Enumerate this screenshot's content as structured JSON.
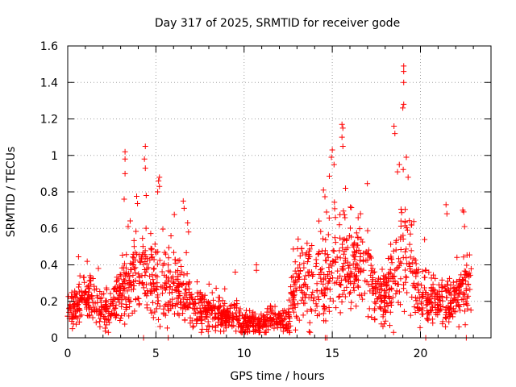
{
  "chart_data": {
    "type": "scatter",
    "title": "Day 317 of 2025, SRMTID for receiver gode",
    "xlabel": "GPS time / hours",
    "ylabel": "SRMTID / TECUs",
    "xlim": [
      0,
      24
    ],
    "ylim": [
      0,
      1.6
    ],
    "x_ticks": [
      "0",
      "5",
      "10",
      "15",
      "20"
    ],
    "x_tick_values": [
      0,
      5,
      10,
      15,
      20
    ],
    "y_ticks": [
      "0",
      "0.2",
      "0.4",
      "0.6",
      "0.8",
      "1",
      "1.2",
      "1.4",
      "1.6"
    ],
    "y_tick_values": [
      0,
      0.2,
      0.4,
      0.6,
      0.8,
      1.0,
      1.2,
      1.4,
      1.6
    ],
    "grid": true,
    "marker": "+",
    "color": "#ff0000",
    "profile_hours": [
      0,
      0.5,
      1,
      1.5,
      2,
      2.5,
      3,
      3.5,
      4,
      4.5,
      5,
      5.5,
      6,
      6.5,
      7,
      7.5,
      8,
      8.5,
      9,
      9.5,
      10,
      10.5,
      11,
      11.5,
      12,
      12.5,
      13,
      13.5,
      14,
      14.5,
      15,
      15.5,
      16,
      16.5,
      17,
      17.5,
      18,
      18.5,
      19,
      19.5,
      20,
      20.5,
      21,
      21.5,
      22,
      22.5,
      23
    ],
    "profile_typical_srmtid": [
      0.15,
      0.17,
      0.22,
      0.2,
      0.15,
      0.14,
      0.25,
      0.3,
      0.38,
      0.35,
      0.3,
      0.25,
      0.3,
      0.22,
      0.2,
      0.16,
      0.14,
      0.13,
      0.12,
      0.12,
      0.09,
      0.09,
      0.08,
      0.1,
      0.1,
      0.1,
      0.3,
      0.35,
      0.3,
      0.3,
      0.4,
      0.45,
      0.4,
      0.42,
      0.35,
      0.25,
      0.2,
      0.35,
      0.45,
      0.38,
      0.25,
      0.2,
      0.2,
      0.2,
      0.2,
      0.25,
      0.3
    ],
    "profile_spread": [
      0.06,
      0.07,
      0.08,
      0.08,
      0.06,
      0.07,
      0.12,
      0.14,
      0.16,
      0.15,
      0.14,
      0.12,
      0.12,
      0.1,
      0.09,
      0.07,
      0.06,
      0.05,
      0.05,
      0.05,
      0.04,
      0.04,
      0.04,
      0.04,
      0.04,
      0.05,
      0.15,
      0.15,
      0.14,
      0.15,
      0.18,
      0.18,
      0.16,
      0.16,
      0.14,
      0.1,
      0.1,
      0.18,
      0.2,
      0.16,
      0.1,
      0.08,
      0.08,
      0.08,
      0.08,
      0.1,
      0.1
    ],
    "peaks": [
      {
        "x": 3.25,
        "y": 1.02
      },
      {
        "x": 3.25,
        "y": 0.98
      },
      {
        "x": 3.25,
        "y": 0.9
      },
      {
        "x": 3.2,
        "y": 0.76
      },
      {
        "x": 4.4,
        "y": 1.05
      },
      {
        "x": 4.35,
        "y": 0.98
      },
      {
        "x": 4.4,
        "y": 0.93
      },
      {
        "x": 4.45,
        "y": 0.78
      },
      {
        "x": 5.2,
        "y": 0.88
      },
      {
        "x": 5.15,
        "y": 0.86
      },
      {
        "x": 5.2,
        "y": 0.83
      },
      {
        "x": 5.1,
        "y": 0.8
      },
      {
        "x": 6.55,
        "y": 0.75
      },
      {
        "x": 6.6,
        "y": 0.71
      },
      {
        "x": 6.8,
        "y": 0.63
      },
      {
        "x": 6.85,
        "y": 0.58
      },
      {
        "x": 9.5,
        "y": 0.36
      },
      {
        "x": 10.7,
        "y": 0.4
      },
      {
        "x": 10.7,
        "y": 0.37
      },
      {
        "x": 14.5,
        "y": 0.81
      },
      {
        "x": 14.95,
        "y": 0.99
      },
      {
        "x": 15.0,
        "y": 1.03
      },
      {
        "x": 15.1,
        "y": 0.95
      },
      {
        "x": 15.55,
        "y": 1.17
      },
      {
        "x": 15.6,
        "y": 1.15
      },
      {
        "x": 15.55,
        "y": 1.1
      },
      {
        "x": 15.6,
        "y": 1.05
      },
      {
        "x": 15.75,
        "y": 0.82
      },
      {
        "x": 16.6,
        "y": 0.68
      },
      {
        "x": 18.5,
        "y": 1.16
      },
      {
        "x": 18.55,
        "y": 1.12
      },
      {
        "x": 18.8,
        "y": 0.95
      },
      {
        "x": 18.7,
        "y": 0.91
      },
      {
        "x": 19.05,
        "y": 1.49
      },
      {
        "x": 19.05,
        "y": 1.46
      },
      {
        "x": 19.05,
        "y": 1.4
      },
      {
        "x": 19.05,
        "y": 1.28
      },
      {
        "x": 19.0,
        "y": 1.26
      },
      {
        "x": 19.2,
        "y": 0.99
      },
      {
        "x": 19.3,
        "y": 0.88
      },
      {
        "x": 21.45,
        "y": 0.73
      },
      {
        "x": 21.5,
        "y": 0.68
      },
      {
        "x": 22.4,
        "y": 0.7
      },
      {
        "x": 22.45,
        "y": 0.69
      },
      {
        "x": 22.5,
        "y": 0.61
      }
    ],
    "zero_markers": [
      4.3,
      5.7,
      14.6,
      14.7,
      20.3,
      22.6
    ]
  }
}
